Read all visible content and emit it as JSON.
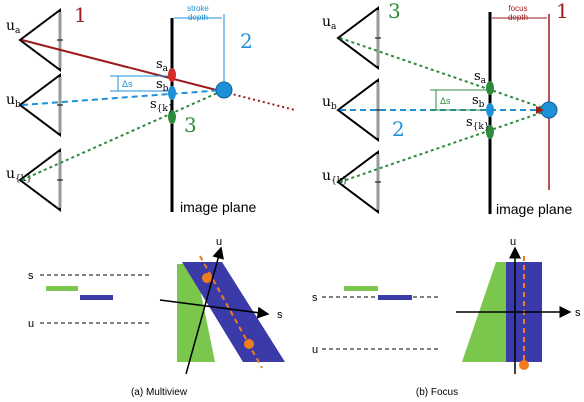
{
  "left_panel": {
    "views": {
      "a": "u",
      "a_sub": "a",
      "b": "u",
      "b_sub": "b",
      "k": "u",
      "k_sub": "{k}"
    },
    "samples": {
      "a": "s",
      "a_sub": "a",
      "b": "s",
      "b_sub": "b",
      "k": "s",
      "k_sub": "{k}"
    },
    "delta": "Δs",
    "numbers": {
      "red": "1",
      "blue": "2",
      "green": "3"
    },
    "depth_label_line1": "stroke",
    "depth_label_line2": "depth",
    "plane_label": "image plane"
  },
  "right_panel": {
    "views": {
      "a": "u",
      "a_sub": "a",
      "b": "u",
      "b_sub": "b",
      "k": "u",
      "k_sub": "{k}"
    },
    "samples": {
      "a": "s",
      "a_sub": "a",
      "b": "s",
      "b_sub": "b",
      "k": "s",
      "k_sub": "{k}"
    },
    "delta": "Δs",
    "numbers": {
      "green": "3",
      "blue": "2",
      "red": "1"
    },
    "depth_label_line1": "focus",
    "depth_label_line2": "depth",
    "plane_label": "image plane"
  },
  "bottom_left": {
    "s_label": "s",
    "u_label": "u",
    "axis_u": "u",
    "axis_s": "s",
    "caption": "(a) Multiview"
  },
  "bottom_right": {
    "s_label": "s",
    "u_label": "u",
    "axis_u": "u",
    "axis_s": "s",
    "caption": "(b) Focus"
  },
  "colors": {
    "red": "#9b1b1b",
    "blue": "#1e90d8",
    "green": "#2e8b3e",
    "light_green": "#7bc74d",
    "navy": "#3a3aa8",
    "orange": "#f07c1e"
  }
}
